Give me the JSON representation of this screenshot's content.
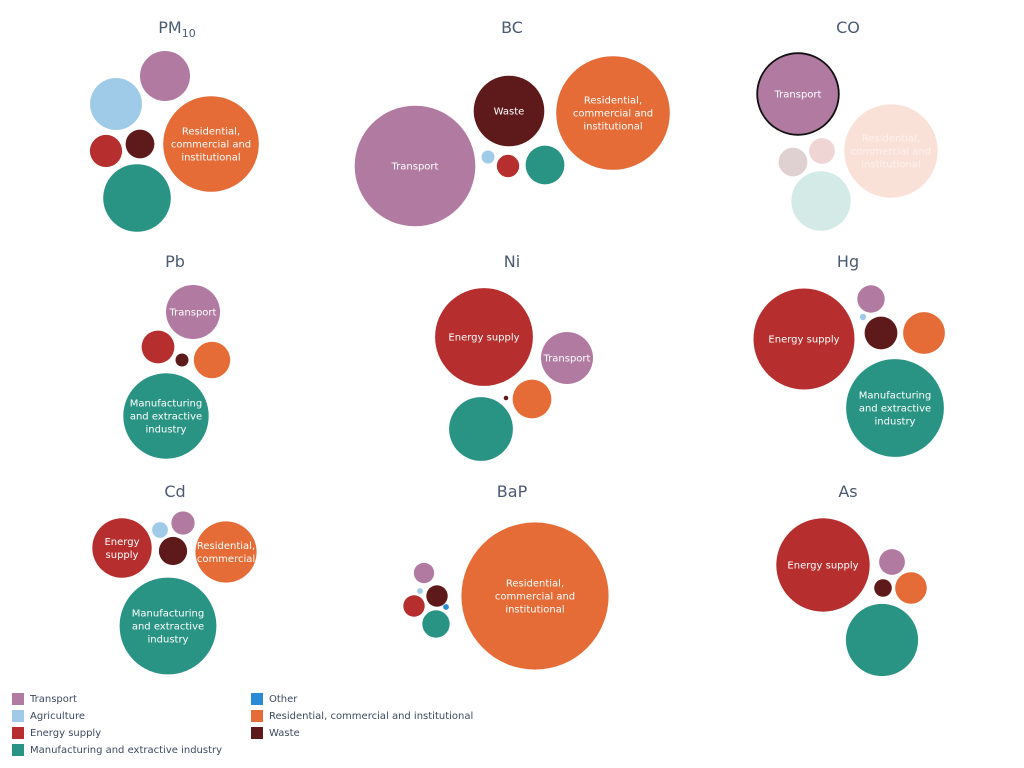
{
  "sector_colors": {
    "Transport": "#b07aa1",
    "Agriculture": "#a0cbe8",
    "Energy supply": "#b62e2e",
    "Manufacturing and extractive industry": "#2a9484",
    "Other": "#2a8ad6",
    "Residential, commercial and institutional": "#e56b37",
    "Waste": "#5e1a1a"
  },
  "legend": {
    "items": [
      {
        "sector": "Transport",
        "label": "Transport"
      },
      {
        "sector": "Agriculture",
        "label": "Agriculture"
      },
      {
        "sector": "Energy supply",
        "label": "Energy supply"
      },
      {
        "sector": "Manufacturing and extractive industry",
        "label": "Manufacturing and extractive industry"
      },
      {
        "sector": "Other",
        "label": "Other"
      },
      {
        "sector": "Residential, commercial and institutional",
        "label": "Residential, commercial and institutional"
      },
      {
        "sector": "Waste",
        "label": "Waste"
      }
    ]
  },
  "chart_data": [
    {
      "type": "bubble",
      "title": "PM",
      "title_subscript": "10",
      "series": [
        {
          "name": "Transport",
          "value": 6
        },
        {
          "name": "Agriculture",
          "value": 6.5
        },
        {
          "name": "Energy supply",
          "value": 2.5
        },
        {
          "name": "Waste",
          "value": 2
        },
        {
          "name": "Residential, commercial and institutional",
          "value": 22,
          "label": "Residential, commercial and institutional"
        },
        {
          "name": "Manufacturing and extractive industry",
          "value": 11
        }
      ]
    },
    {
      "type": "bubble",
      "title": "BC",
      "series": [
        {
          "name": "Transport",
          "value": 35,
          "label": "Transport"
        },
        {
          "name": "Waste",
          "value": 12,
          "label": "Waste"
        },
        {
          "name": "Residential, commercial and institutional",
          "value": 31,
          "label": "Residential, commercial and institutional"
        },
        {
          "name": "Energy supply",
          "value": 1.2
        },
        {
          "name": "Manufacturing and extractive industry",
          "value": 3.6
        },
        {
          "name": "Agriculture",
          "value": 0.4
        }
      ]
    },
    {
      "type": "bubble",
      "title": "CO",
      "highlight": "Transport",
      "series": [
        {
          "name": "Transport",
          "value": 16,
          "label": "Transport"
        },
        {
          "name": "Residential, commercial and institutional",
          "value": 21,
          "label": "Residential, commercial and institutional"
        },
        {
          "name": "Waste",
          "value": 2
        },
        {
          "name": "Energy supply",
          "value": 1.6
        },
        {
          "name": "Manufacturing and extractive industry",
          "value": 8.5
        }
      ]
    },
    {
      "type": "bubble",
      "title": "Pb",
      "series": [
        {
          "name": "Transport",
          "value": 7,
          "label": "Transport"
        },
        {
          "name": "Energy supply",
          "value": 2.6
        },
        {
          "name": "Waste",
          "value": 0.4
        },
        {
          "name": "Residential, commercial and institutional",
          "value": 3.2
        },
        {
          "name": "Manufacturing and extractive industry",
          "value": 17.5,
          "label": "Manufacturing and extractive industry"
        }
      ]
    },
    {
      "type": "bubble",
      "title": "Ni",
      "series": [
        {
          "name": "Energy supply",
          "value": 23,
          "label": "Energy supply"
        },
        {
          "name": "Transport",
          "value": 6.5,
          "label": "Transport"
        },
        {
          "name": "Residential, commercial and institutional",
          "value": 3.6
        },
        {
          "name": "Waste",
          "value": 0.05
        },
        {
          "name": "Manufacturing and extractive industry",
          "value": 9.8
        }
      ]
    },
    {
      "type": "bubble",
      "title": "Hg",
      "series": [
        {
          "name": "Energy supply",
          "value": 24.5,
          "label": "Energy supply"
        },
        {
          "name": "Transport",
          "value": 1.8
        },
        {
          "name": "Agriculture",
          "value": 0.1
        },
        {
          "name": "Waste",
          "value": 2.6
        },
        {
          "name": "Residential, commercial and institutional",
          "value": 4.2
        },
        {
          "name": "Manufacturing and extractive industry",
          "value": 23,
          "label": "Manufacturing and extractive industry"
        }
      ]
    },
    {
      "type": "bubble",
      "title": "Cd",
      "series": [
        {
          "name": "Energy supply",
          "value": 8.5,
          "label": "Energy supply"
        },
        {
          "name": "Agriculture",
          "value": 0.6
        },
        {
          "name": "Transport",
          "value": 1.3
        },
        {
          "name": "Waste",
          "value": 1.9
        },
        {
          "name": "Residential, commercial",
          "value": 9,
          "label": "Residential, commercial"
        },
        {
          "name": "Manufacturing and extractive industry",
          "value": 22.5,
          "label": "Manufacturing and extractive industry"
        }
      ]
    },
    {
      "type": "bubble",
      "title": "BaP",
      "series": [
        {
          "name": "Residential, commercial and institutional",
          "value": 52,
          "label": "Residential, commercial and institutional"
        },
        {
          "name": "Transport",
          "value": 1
        },
        {
          "name": "Agriculture",
          "value": 0.08
        },
        {
          "name": "Energy supply",
          "value": 1.1
        },
        {
          "name": "Waste",
          "value": 1.1
        },
        {
          "name": "Other",
          "value": 0.08
        },
        {
          "name": "Manufacturing and extractive industry",
          "value": 1.8
        }
      ]
    },
    {
      "type": "bubble",
      "title": "As",
      "series": [
        {
          "name": "Energy supply",
          "value": 21,
          "label": "Energy supply"
        },
        {
          "name": "Transport",
          "value": 1.6
        },
        {
          "name": "Waste",
          "value": 0.75
        },
        {
          "name": "Residential, commercial and institutional",
          "value": 2.4
        },
        {
          "name": "Manufacturing and extractive industry",
          "value": 12.5
        }
      ]
    }
  ]
}
